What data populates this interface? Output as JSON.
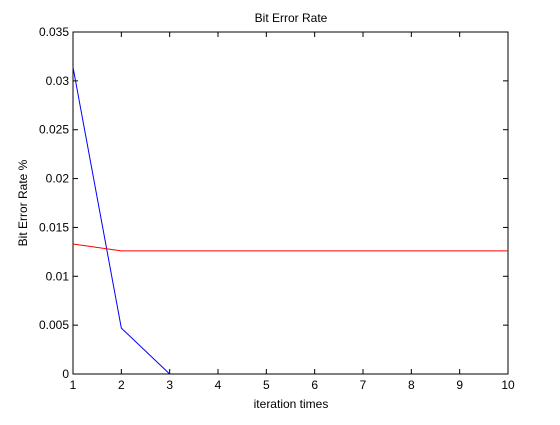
{
  "chart_data": {
    "type": "line",
    "title": "Bit Error Rate",
    "xlabel": "iteration times",
    "ylabel": "Bit Error Rate %",
    "xlim": [
      1,
      10
    ],
    "ylim": [
      0,
      0.035
    ],
    "xticks": [
      1,
      2,
      3,
      4,
      5,
      6,
      7,
      8,
      9,
      10
    ],
    "xtick_labels": [
      "1",
      "2",
      "3",
      "4",
      "5",
      "6",
      "7",
      "8",
      "9",
      "10"
    ],
    "yticks": [
      0,
      0.005,
      0.01,
      0.015,
      0.02,
      0.025,
      0.03,
      0.035
    ],
    "ytick_labels": [
      "0",
      "0.005",
      "0.01",
      "0.015",
      "0.02",
      "0.025",
      "0.03",
      "0.035"
    ],
    "grid": false,
    "legend": null,
    "series": [
      {
        "color": "#0000ff",
        "x": [
          1,
          2,
          3
        ],
        "y": [
          0.0314,
          0.0047,
          0.0
        ]
      },
      {
        "color": "#ff0000",
        "x": [
          1,
          2,
          3,
          4,
          5,
          6,
          7,
          8,
          9,
          10
        ],
        "y": [
          0.0133,
          0.0126,
          0.0126,
          0.0126,
          0.0126,
          0.0126,
          0.0126,
          0.0126,
          0.0126,
          0.0126
        ]
      }
    ]
  }
}
